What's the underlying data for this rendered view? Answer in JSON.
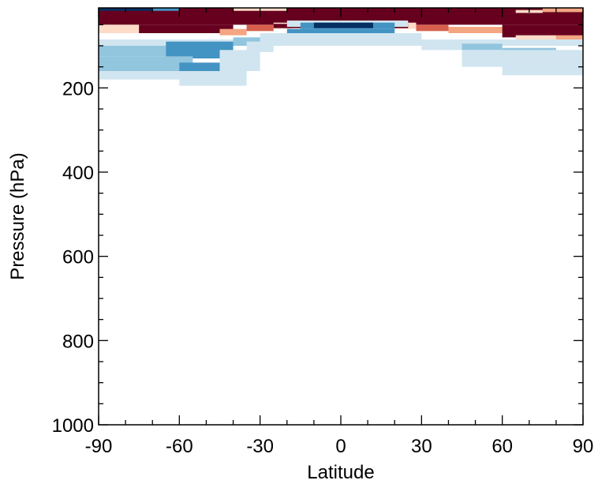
{
  "chart_data": {
    "type": "heatmap",
    "title": "",
    "xlabel": "Latitude",
    "ylabel": "Pressure (hPa)",
    "xlim": [
      -90,
      90
    ],
    "ylim": [
      1000,
      10
    ],
    "y_axis_inverted": true,
    "grid": false,
    "legend": "none",
    "x_ticks": [
      {
        "value": -90,
        "label": "-90"
      },
      {
        "value": -60,
        "label": "-60"
      },
      {
        "value": -30,
        "label": "-30"
      },
      {
        "value": 0,
        "label": "0"
      },
      {
        "value": 30,
        "label": "30"
      },
      {
        "value": 60,
        "label": "60"
      },
      {
        "value": 90,
        "label": "90"
      }
    ],
    "y_ticks": [
      {
        "value": 200,
        "label": "200"
      },
      {
        "value": 400,
        "label": "400"
      },
      {
        "value": 600,
        "label": "600"
      },
      {
        "value": 800,
        "label": "800"
      },
      {
        "value": 1000,
        "label": "1000"
      }
    ],
    "x_minor_step": 10,
    "y_minor_step": 50,
    "colors": {
      "strong_positive": "#67001f",
      "positive": "#d6604d",
      "weak_positive": "#f4a582",
      "faint_positive": "#fddbc7",
      "faint_negative": "#d1e5f0",
      "weak_negative": "#92c5de",
      "negative": "#4393c3",
      "strong_negative": "#053061"
    },
    "cells": [
      {
        "lat": [
          -90,
          90
        ],
        "p": [
          10,
          50
        ],
        "level": "strong_positive"
      },
      {
        "lat": [
          -90,
          -70
        ],
        "p": [
          10,
          17
        ],
        "level": "strong_negative"
      },
      {
        "lat": [
          -70,
          -60
        ],
        "p": [
          10,
          17
        ],
        "level": "negative"
      },
      {
        "lat": [
          -40,
          -20
        ],
        "p": [
          10,
          17
        ],
        "level": "faint_positive"
      },
      {
        "lat": [
          -90,
          -75
        ],
        "p": [
          50,
          70
        ],
        "level": "faint_positive"
      },
      {
        "lat": [
          -75,
          -40
        ],
        "p": [
          50,
          70
        ],
        "level": "strong_positive"
      },
      {
        "lat": [
          -45,
          -35
        ],
        "p": [
          60,
          75
        ],
        "level": "weak_positive"
      },
      {
        "lat": [
          -35,
          -25
        ],
        "p": [
          50,
          65
        ],
        "level": "positive"
      },
      {
        "lat": [
          -25,
          -18
        ],
        "p": [
          45,
          60
        ],
        "level": "faint_positive"
      },
      {
        "lat": [
          18,
          28
        ],
        "p": [
          45,
          60
        ],
        "level": "faint_positive"
      },
      {
        "lat": [
          28,
          40
        ],
        "p": [
          50,
          65
        ],
        "level": "positive"
      },
      {
        "lat": [
          40,
          60
        ],
        "p": [
          55,
          70
        ],
        "level": "weak_positive"
      },
      {
        "lat": [
          60,
          90
        ],
        "p": [
          50,
          80
        ],
        "level": "strong_positive"
      },
      {
        "lat": [
          65,
          80
        ],
        "p": [
          75,
          90
        ],
        "level": "faint_positive"
      },
      {
        "lat": [
          80,
          90
        ],
        "p": [
          75,
          90
        ],
        "level": "weak_positive"
      },
      {
        "lat": [
          75,
          90
        ],
        "p": [
          10,
          20
        ],
        "level": "weak_positive"
      },
      {
        "lat": [
          65,
          75
        ],
        "p": [
          15,
          22
        ],
        "level": "faint_positive"
      },
      {
        "lat": [
          -25,
          25
        ],
        "p": [
          48,
          58
        ],
        "level": "strong_positive"
      },
      {
        "lat": [
          -20,
          25
        ],
        "p": [
          40,
          55
        ],
        "level": "faint_negative"
      },
      {
        "lat": [
          -15,
          20
        ],
        "p": [
          45,
          60
        ],
        "level": "negative"
      },
      {
        "lat": [
          -10,
          12
        ],
        "p": [
          45,
          58
        ],
        "level": "strong_negative"
      },
      {
        "lat": [
          -20,
          20
        ],
        "p": [
          60,
          75
        ],
        "level": "negative"
      },
      {
        "lat": [
          -30,
          30
        ],
        "p": [
          70,
          85
        ],
        "level": "faint_negative"
      },
      {
        "lat": [
          -90,
          90
        ],
        "p": [
          85,
          100
        ],
        "level": "faint_negative"
      },
      {
        "lat": [
          -90,
          -70
        ],
        "p": [
          95,
          115
        ],
        "level": "faint_negative"
      },
      {
        "lat": [
          -90,
          -65
        ],
        "p": [
          100,
          125
        ],
        "level": "weak_negative"
      },
      {
        "lat": [
          -65,
          -40
        ],
        "p": [
          90,
          130
        ],
        "level": "negative"
      },
      {
        "lat": [
          -40,
          -30
        ],
        "p": [
          80,
          100
        ],
        "level": "weak_negative"
      },
      {
        "lat": [
          -35,
          -25
        ],
        "p": [
          90,
          115
        ],
        "level": "faint_negative"
      },
      {
        "lat": [
          30,
          45
        ],
        "p": [
          90,
          110
        ],
        "level": "faint_negative"
      },
      {
        "lat": [
          45,
          60
        ],
        "p": [
          95,
          110
        ],
        "level": "weak_negative"
      },
      {
        "lat": [
          60,
          80
        ],
        "p": [
          105,
          120
        ],
        "level": "weak_negative"
      },
      {
        "lat": [
          -90,
          -55
        ],
        "p": [
          125,
          160
        ],
        "level": "weak_negative"
      },
      {
        "lat": [
          -60,
          -45
        ],
        "p": [
          140,
          170
        ],
        "level": "negative"
      },
      {
        "lat": [
          -45,
          -30
        ],
        "p": [
          110,
          160
        ],
        "level": "faint_negative"
      },
      {
        "lat": [
          -90,
          -60
        ],
        "p": [
          160,
          180
        ],
        "level": "faint_negative"
      },
      {
        "lat": [
          -60,
          -35
        ],
        "p": [
          160,
          195
        ],
        "level": "faint_negative"
      },
      {
        "lat": [
          45,
          90
        ],
        "p": [
          110,
          150
        ],
        "level": "faint_negative"
      },
      {
        "lat": [
          60,
          90
        ],
        "p": [
          140,
          170
        ],
        "level": "faint_negative"
      }
    ]
  }
}
